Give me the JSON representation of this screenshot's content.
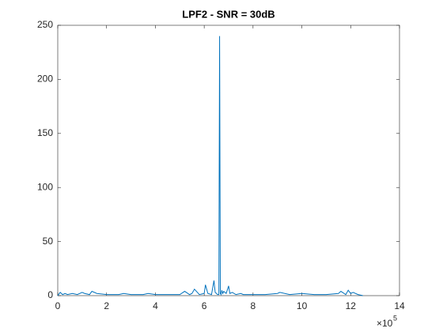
{
  "chart_data": {
    "type": "line",
    "title": "LPF2 - SNR = 30dB",
    "x": [
      0,
      10000,
      20000,
      30000,
      40000,
      60000,
      80000,
      100000,
      110000,
      130000,
      140000,
      160000,
      200000,
      250000,
      270000,
      300000,
      350000,
      370000,
      400000,
      450000,
      500000,
      520000,
      540000,
      550000,
      560000,
      580000,
      600000,
      605000,
      615000,
      630000,
      640000,
      645000,
      650000,
      655000,
      660000,
      663000,
      666000,
      669000,
      672000,
      676000,
      680000,
      690000,
      700000,
      705000,
      715000,
      730000,
      750000,
      760000,
      800000,
      850000,
      900000,
      910000,
      950000,
      1000000,
      1050000,
      1100000,
      1150000,
      1160000,
      1180000,
      1190000,
      1200000,
      1210000,
      1230000,
      1250000
    ],
    "series": [
      {
        "name": "LPF2",
        "color": "#0072bd",
        "values": [
          0,
          3,
          1,
          2,
          1,
          2,
          1,
          3,
          2,
          1,
          4,
          2,
          1,
          1,
          2,
          1,
          1,
          2,
          1,
          1,
          1,
          4,
          1,
          2,
          6,
          1,
          2,
          10,
          2,
          1,
          14,
          3,
          2,
          1,
          1,
          240,
          2,
          1,
          5,
          2,
          4,
          2,
          9,
          2,
          3,
          1,
          2,
          1,
          1,
          1,
          2,
          3,
          1,
          2,
          1,
          1,
          2,
          4,
          1,
          5,
          2,
          3,
          1,
          0
        ]
      }
    ],
    "xlim": [
      0,
      1400000
    ],
    "ylim": [
      0,
      250
    ],
    "xticks": [
      {
        "value": 0,
        "label": "0"
      },
      {
        "value": 200000,
        "label": "2"
      },
      {
        "value": 400000,
        "label": "4"
      },
      {
        "value": 600000,
        "label": "6"
      },
      {
        "value": 800000,
        "label": "8"
      },
      {
        "value": 1000000,
        "label": "10"
      },
      {
        "value": 1200000,
        "label": "12"
      },
      {
        "value": 1400000,
        "label": "14"
      }
    ],
    "yticks": [
      0,
      50,
      100,
      150,
      200,
      250
    ],
    "x_exponent": {
      "base": "×10",
      "power": "5"
    }
  }
}
